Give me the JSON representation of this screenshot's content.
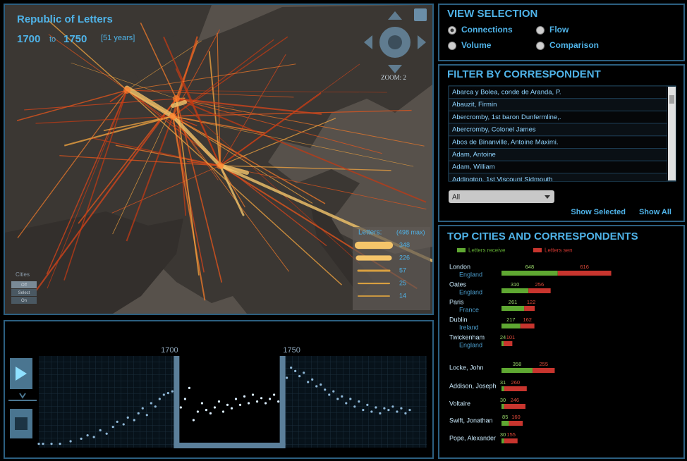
{
  "header": {
    "title": "Republic of Letters",
    "start": "1700",
    "to": "to",
    "end": "1750",
    "span": "[51 years]"
  },
  "zoom": "ZOOM: 2",
  "cities_toggle": {
    "title": "Cities",
    "options": [
      "Off",
      "Select",
      "On"
    ]
  },
  "map_legend": {
    "title": "Letters:",
    "max_label": "(498 max)",
    "values": [
      348,
      226,
      57,
      25,
      14
    ]
  },
  "view_selection": {
    "title": "VIEW SELECTION",
    "options": [
      "Connections",
      "Flow",
      "Volume",
      "Comparison"
    ],
    "selected_index": 0
  },
  "filter": {
    "title": "FILTER BY CORRESPONDENT",
    "items": [
      "Abarca y Bolea, conde de Aranda, P.",
      "Abauzit, Firmin",
      "Abercromby, 1st baron Dunfermline,.",
      "Abercromby, Colonel James",
      "Abos de Binanville, Antoine Maximi.",
      "Adam, Antoine",
      "Adam, William",
      "Addington, 1st Viscount Sidmouth"
    ],
    "dropdown": "All",
    "buttons": [
      "Show Selected",
      "Show All"
    ]
  },
  "chart_data": [
    {
      "type": "scatter",
      "color": "#8fb8d8",
      "selected_color": "#dcefff",
      "x": [
        1635,
        1637,
        1641,
        1645,
        1650,
        1655,
        1658,
        1661,
        1664,
        1667,
        1670,
        1672,
        1675,
        1677,
        1680,
        1682,
        1684,
        1686,
        1688,
        1690,
        1692,
        1694,
        1696,
        1698,
        1700,
        1702,
        1704,
        1706,
        1708,
        1710,
        1712,
        1714,
        1716,
        1718,
        1720,
        1722,
        1724,
        1726,
        1728,
        1730,
        1732,
        1734,
        1736,
        1738,
        1740,
        1742,
        1744,
        1746,
        1748,
        1750,
        1752,
        1754,
        1756,
        1758,
        1760,
        1762,
        1764,
        1766,
        1768,
        1770,
        1772,
        1774,
        1776,
        1778,
        1780,
        1782,
        1784,
        1786,
        1788,
        1790,
        1792,
        1794,
        1796,
        1798,
        1800,
        1802,
        1804,
        1806,
        1808,
        1810
      ],
      "y": [
        2,
        2,
        2,
        2,
        5,
        8,
        12,
        10,
        18,
        14,
        22,
        28,
        25,
        33,
        30,
        38,
        44,
        36,
        50,
        46,
        55,
        60,
        62,
        64,
        66,
        45,
        55,
        68,
        30,
        40,
        50,
        42,
        38,
        45,
        52,
        40,
        48,
        44,
        55,
        48,
        58,
        50,
        60,
        52,
        56,
        50,
        55,
        60,
        52,
        58,
        80,
        92,
        88,
        82,
        86,
        75,
        78,
        70,
        72,
        66,
        60,
        64,
        55,
        58,
        50,
        55,
        46,
        52,
        42,
        48,
        40,
        45,
        38,
        44,
        42,
        46,
        40,
        44,
        38,
        42
      ],
      "xlim": [
        1635,
        1818
      ],
      "ylim": [
        0,
        100
      ],
      "selection": [
        1700,
        1750
      ]
    },
    {
      "type": "bar",
      "orientation": "horizontal",
      "title": "TOP CITIES AND CORRESPONDENTS",
      "categories": [
        "London",
        "Oates",
        "Paris",
        "Dublin",
        "Twickenham",
        "Locke, John",
        "Addison, Joseph",
        "Voltaire",
        "Swift, Jonathan",
        "Pope, Alexander"
      ],
      "sublabels": [
        "England",
        "England",
        "France",
        "Ireland",
        "England",
        null,
        null,
        null,
        null,
        null
      ],
      "series": [
        {
          "name": "Letters receive",
          "color": "#5fa832",
          "values": [
            648,
            310,
            261,
            217,
            24,
            358,
            31,
            30,
            85,
            30
          ]
        },
        {
          "name": "Letters sen",
          "color": "#c8352e",
          "values": [
            616,
            256,
            122,
            162,
            101,
            255,
            260,
            246,
            160,
            155
          ]
        }
      ],
      "xlim": [
        0,
        1300
      ]
    }
  ]
}
